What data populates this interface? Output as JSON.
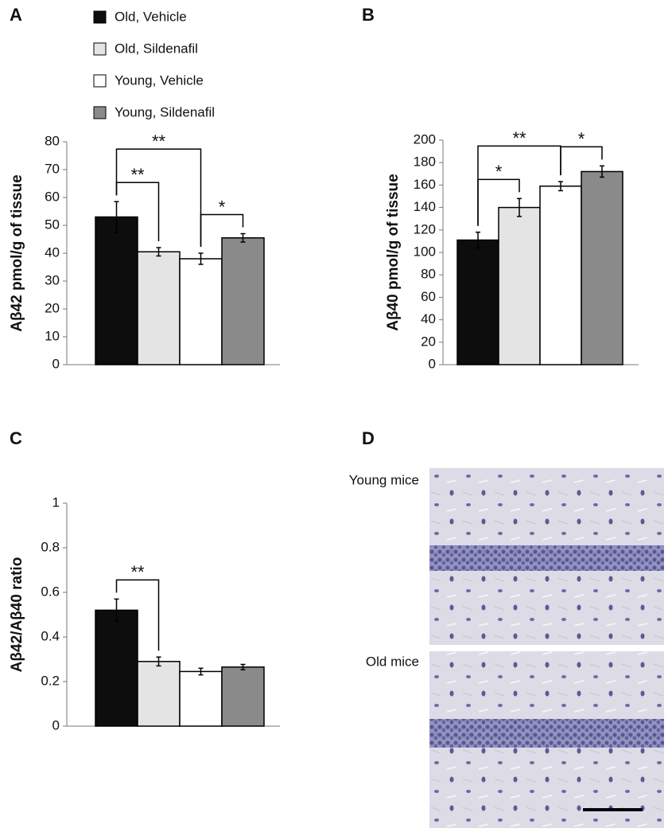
{
  "panel_labels": [
    "A",
    "B",
    "C",
    "D"
  ],
  "legend": {
    "items": [
      {
        "name": "Old, Vehicle",
        "color": "#0d0d0d"
      },
      {
        "name": "Old, Sildenafil",
        "color": "#e4e4e4"
      },
      {
        "name": "Young, Vehicle",
        "color": "#ffffff"
      },
      {
        "name": "Young, Sildenafil",
        "color": "#8a8a8a"
      }
    ]
  },
  "chart_data": [
    {
      "type": "bar",
      "y_label": "Aβ42 pmol/g of tissue",
      "categories": [
        null,
        null,
        null,
        null
      ],
      "values": [
        53,
        40.5,
        38,
        45.5
      ],
      "errors": [
        5.5,
        1.5,
        2,
        1.5
      ],
      "ylim": [
        0,
        80
      ],
      "yticks": [
        0,
        10,
        20,
        30,
        40,
        50,
        60,
        70,
        80
      ],
      "annotations": [
        {
          "text": "**",
          "from": 0,
          "to": 1
        },
        {
          "text": "**",
          "from": 0,
          "to": 2
        },
        {
          "text": "*",
          "from": 2,
          "to": 3
        }
      ]
    },
    {
      "type": "bar",
      "y_label": "Aβ40 pmol/g of tissue",
      "categories": [
        null,
        null,
        null,
        null
      ],
      "values": [
        111,
        140,
        159,
        172
      ],
      "errors": [
        7,
        8,
        4,
        5
      ],
      "ylim": [
        0,
        200
      ],
      "yticks": [
        0,
        20,
        40,
        60,
        80,
        100,
        120,
        140,
        160,
        180,
        200
      ],
      "annotations": [
        {
          "text": "*",
          "from": 0,
          "to": 1
        },
        {
          "text": "**",
          "from": 0,
          "to": 2
        },
        {
          "text": "*",
          "from": 2,
          "to": 3
        }
      ]
    },
    {
      "type": "bar",
      "y_label": "Aβ42/Aβ40 ratio",
      "categories": [
        null,
        null,
        null,
        null
      ],
      "values": [
        0.52,
        0.29,
        0.245,
        0.265
      ],
      "errors": [
        0.05,
        0.02,
        0.015,
        0.012
      ],
      "ylim": [
        0,
        1
      ],
      "yticks": [
        0,
        0.2,
        0.4,
        0.6,
        0.8,
        1
      ],
      "annotations": [
        {
          "text": "**",
          "from": 0,
          "to": 1
        }
      ]
    }
  ],
  "images": [
    {
      "label": "Young mice"
    },
    {
      "label": "Old mice"
    }
  ]
}
